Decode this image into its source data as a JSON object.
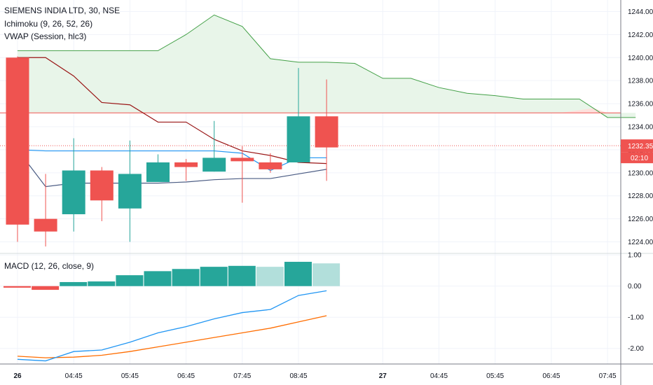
{
  "legend": {
    "symbol": "SIEMENS INDIA LTD, 30, NSE",
    "ichimoku": "Ichimoku (9, 26, 52, 26)",
    "vwap": "VWAP (Session, hlc3)",
    "macd": "MACD (12, 26, close, 9)"
  },
  "price_tag": {
    "value": "1232.35",
    "countdown": "02:10",
    "color": "#ef5350"
  },
  "colors": {
    "up": "#26a69a",
    "down": "#ef5350",
    "hist_light": "#b2dfdb",
    "conversion": "#2196f3",
    "base": "#991515",
    "span_a": "#43a047",
    "cloud_fill": "#e8f5e9",
    "cloud_fill_red": "#fde0dc",
    "vwap": "#4a5b83",
    "hline": "#ef5350",
    "macd": "#2196f3",
    "signal": "#ff6d00"
  },
  "chart_data": {
    "type": "candlestick",
    "x_labels": [
      "26",
      "04:45",
      "05:45",
      "06:45",
      "07:45",
      "08:45",
      "27",
      "04:45",
      "05:45",
      "06:45",
      "07:45"
    ],
    "price_axis": {
      "ticks": [
        "1224.00",
        "1226.00",
        "1228.00",
        "1230.00",
        "1232.00",
        "1234.00",
        "1236.00",
        "1238.00",
        "1240.00",
        "1242.00",
        "1244.00"
      ],
      "ylim": [
        1223.0,
        1245.0
      ]
    },
    "candles": [
      {
        "o": 1240.0,
        "h": 1240.1,
        "l": 1224.0,
        "c": 1225.5
      },
      {
        "o": 1226.0,
        "h": 1229.9,
        "l": 1223.6,
        "c": 1224.9
      },
      {
        "o": 1226.4,
        "h": 1233.0,
        "l": 1224.9,
        "c": 1230.2
      },
      {
        "o": 1230.2,
        "h": 1230.5,
        "l": 1225.8,
        "c": 1227.6
      },
      {
        "o": 1226.9,
        "h": 1232.8,
        "l": 1224.0,
        "c": 1229.9
      },
      {
        "o": 1229.2,
        "h": 1231.6,
        "l": 1229.2,
        "c": 1230.9
      },
      {
        "o": 1230.9,
        "h": 1231.2,
        "l": 1229.3,
        "c": 1230.5
      },
      {
        "o": 1230.1,
        "h": 1234.5,
        "l": 1230.1,
        "c": 1231.3
      },
      {
        "o": 1231.3,
        "h": 1232.3,
        "l": 1227.4,
        "c": 1231.0
      },
      {
        "o": 1230.9,
        "h": 1231.7,
        "l": 1230.0,
        "c": 1230.3
      },
      {
        "o": 1230.9,
        "h": 1239.1,
        "l": 1230.9,
        "c": 1234.9
      },
      {
        "o": 1234.9,
        "h": 1238.1,
        "l": 1229.3,
        "c": 1232.2
      }
    ],
    "conversion_line": [
      1232.0,
      1231.9,
      1231.9,
      1231.9,
      1231.9,
      1231.9,
      1231.9,
      1231.9,
      1231.7,
      1230.2,
      1231.3,
      1231.3
    ],
    "base_line": [
      1240.0,
      1240.0,
      1238.4,
      1236.1,
      1235.9,
      1234.4,
      1234.4,
      1232.9,
      1231.9,
      1231.5,
      1230.9,
      1230.8
    ],
    "span_a": [
      1240.6,
      1240.6,
      1240.6,
      1240.6,
      1240.6,
      1240.6,
      1242.0,
      1243.7,
      1242.7,
      1239.9,
      1239.6,
      1239.6,
      1239.5,
      1238.2,
      1238.2,
      1237.4,
      1236.9,
      1236.7,
      1236.4,
      1236.4,
      1236.4,
      1234.8,
      1234.8
    ],
    "span_b": 1235.2,
    "vwap": [
      1232.0,
      1228.8,
      1229.1,
      1229.1,
      1229.1,
      1229.1,
      1229.2,
      1229.4,
      1229.5,
      1229.5,
      1229.9,
      1230.3
    ],
    "hline": 1235.2,
    "current_price": 1232.35,
    "macd_axis": {
      "ticks": [
        "-2.00",
        "-1.00",
        "0.00",
        "1.00"
      ],
      "ylim": [
        -2.5,
        1.05
      ]
    },
    "histogram": [
      -0.05,
      -0.12,
      0.13,
      0.15,
      0.35,
      0.48,
      0.55,
      0.62,
      0.65,
      0.62,
      0.78,
      0.73
    ],
    "histogram_shade": [
      "down",
      "down",
      "up",
      "up",
      "up",
      "up",
      "up",
      "up",
      "up",
      "light",
      "up",
      "light"
    ],
    "macd": [
      -2.35,
      -2.4,
      -2.1,
      -2.05,
      -1.8,
      -1.5,
      -1.3,
      -1.05,
      -0.85,
      -0.75,
      -0.3,
      -0.15
    ],
    "signal": [
      -2.25,
      -2.3,
      -2.28,
      -2.22,
      -2.1,
      -1.95,
      -1.8,
      -1.65,
      -1.5,
      -1.35,
      -1.15,
      -0.95
    ]
  }
}
